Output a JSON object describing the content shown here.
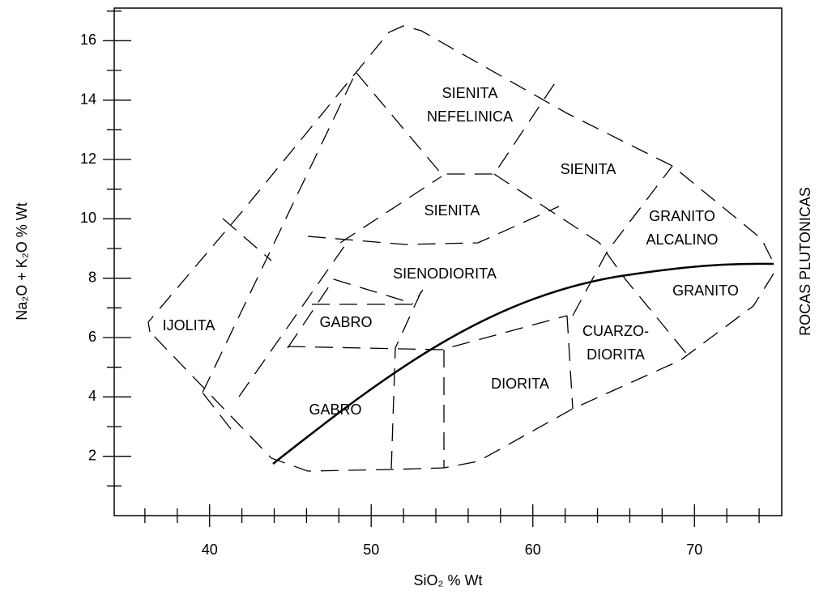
{
  "chart_data": {
    "type": "classification",
    "x_label": "SiO₂ % Wt",
    "y_label": "Na₂O + K₂O % Wt",
    "side_label": "ROCAS PLUTONICAS",
    "xlim": [
      34.1,
      75.4
    ],
    "ylim": [
      0,
      17.1
    ],
    "xticks": [
      40,
      50,
      60,
      70
    ],
    "xminorticks": [
      36,
      38,
      42,
      44,
      46,
      48,
      52,
      54,
      56,
      58,
      62,
      64,
      66,
      68,
      72,
      74
    ],
    "yticks": [
      2,
      4,
      6,
      8,
      10,
      12,
      14,
      16
    ],
    "yminorticks": [
      1,
      3,
      5,
      7,
      9,
      11,
      13,
      15,
      17
    ],
    "fields": [
      [
        "IJOLITA"
      ],
      [
        "GABRO"
      ],
      [
        "GABRO"
      ],
      [
        "SIENODIORITA"
      ],
      [
        "SIENITA"
      ],
      [
        "SIENITA",
        "NEFELINICA"
      ],
      [
        "SIENITA"
      ],
      [
        "GRANITO",
        "ALCALINO"
      ],
      [
        "GRANITO"
      ],
      [
        "CUARZO-",
        "DIORITA"
      ],
      [
        "DIORITA"
      ]
    ]
  }
}
